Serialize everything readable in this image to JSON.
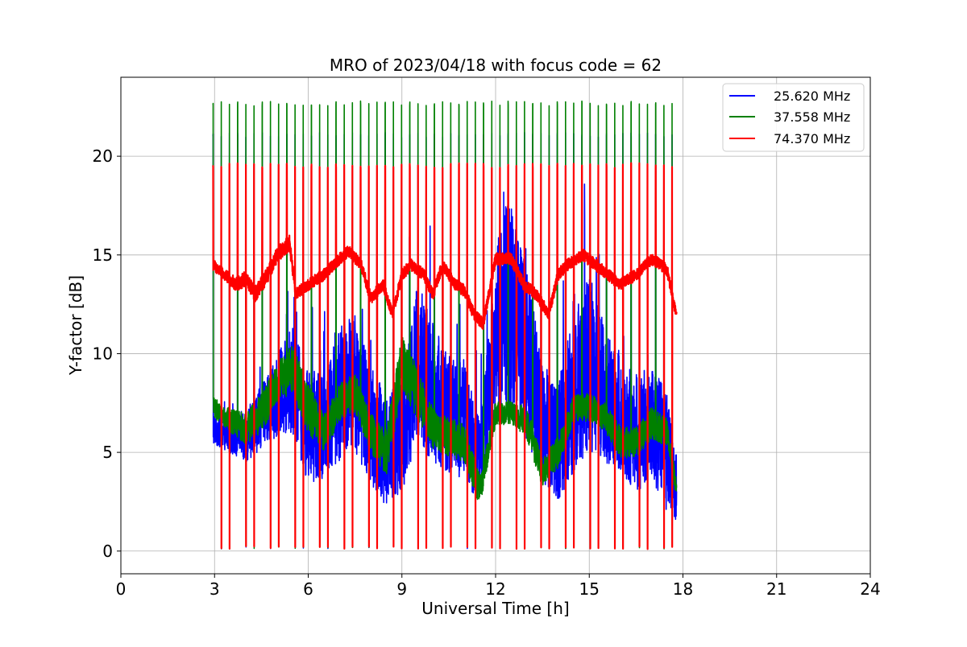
{
  "chart_data": {
    "type": "line",
    "title": "MRO of 2023/04/18 with focus code = 62",
    "xlabel": "Universal Time [h]",
    "ylabel": "Y-factor [dB]",
    "xlim": [
      0,
      24
    ],
    "ylim": [
      -1.15,
      24
    ],
    "xticks": [
      0,
      3,
      6,
      9,
      12,
      15,
      18,
      21,
      24
    ],
    "xtick_labels": [
      "0",
      "3",
      "6",
      "9",
      "12",
      "15",
      "18",
      "21",
      "24"
    ],
    "yticks": [
      0,
      5,
      10,
      15,
      20
    ],
    "ytick_labels": [
      "0",
      "5",
      "10",
      "15",
      "20"
    ],
    "grid": true,
    "legend_position": "top-right",
    "calibration": {
      "start_h": 2.95,
      "end_h": 17.8,
      "period_h": 0.2625,
      "peaks": {
        "blue": 21.2,
        "green": 22.8,
        "red": 19.65
      },
      "floor": 0.1
    },
    "series": [
      {
        "name": "25.620 MHz",
        "color": "#0000ff",
        "x": [
          2.95,
          3.5,
          4.0,
          4.5,
          5.0,
          5.5,
          6.0,
          6.5,
          7.0,
          7.5,
          8.0,
          8.5,
          9.0,
          9.5,
          10.0,
          10.5,
          11.0,
          11.5,
          12.0,
          12.5,
          13.0,
          13.5,
          14.0,
          14.5,
          15.0,
          15.5,
          16.0,
          16.5,
          17.0,
          17.5,
          17.8
        ],
        "values": [
          6.2,
          6.0,
          5.8,
          6.8,
          7.8,
          8.8,
          6.2,
          6.5,
          8.0,
          8.5,
          6.5,
          5.0,
          6.0,
          9.5,
          8.0,
          7.0,
          6.5,
          4.5,
          11.0,
          12.5,
          10.0,
          6.5,
          5.5,
          8.0,
          9.5,
          8.0,
          7.0,
          6.0,
          6.5,
          5.0,
          3.0
        ],
        "amplitude": [
          0.8,
          1.0,
          1.3,
          1.6,
          2.0,
          3.0,
          2.8,
          2.8,
          3.5,
          3.5,
          3.0,
          3.0,
          3.0,
          4.0,
          3.5,
          3.0,
          3.0,
          2.0,
          4.5,
          6.0,
          4.5,
          3.0,
          3.0,
          4.0,
          4.5,
          3.5,
          3.0,
          3.0,
          3.0,
          3.0,
          1.5
        ]
      },
      {
        "name": "37.558 MHz",
        "color": "#008000",
        "x": [
          2.95,
          3.5,
          4.0,
          4.5,
          5.0,
          5.5,
          6.0,
          6.5,
          7.0,
          7.5,
          8.0,
          8.5,
          9.0,
          9.5,
          10.0,
          10.5,
          11.0,
          11.5,
          12.0,
          12.5,
          13.0,
          13.5,
          14.0,
          14.5,
          15.0,
          15.5,
          16.0,
          16.5,
          17.0,
          17.5,
          17.8
        ],
        "values": [
          7.3,
          6.6,
          6.2,
          7.0,
          8.5,
          9.3,
          7.2,
          6.0,
          7.5,
          8.0,
          6.0,
          5.0,
          9.5,
          8.0,
          6.2,
          5.8,
          5.5,
          3.0,
          7.0,
          7.0,
          6.5,
          4.0,
          5.0,
          7.2,
          7.3,
          6.8,
          5.5,
          5.5,
          6.5,
          6.0,
          3.0
        ],
        "amplitude": [
          0.5,
          0.6,
          0.8,
          1.0,
          1.0,
          1.3,
          1.3,
          1.0,
          1.0,
          1.0,
          1.0,
          1.2,
          1.5,
          1.3,
          1.0,
          1.0,
          1.0,
          0.8,
          0.6,
          0.6,
          0.8,
          0.8,
          0.8,
          0.7,
          0.7,
          0.7,
          0.8,
          0.8,
          0.8,
          0.7,
          0.5
        ]
      },
      {
        "name": "74.370 MHz",
        "color": "#ff0000",
        "x": [
          2.95,
          3.3,
          3.7,
          4.0,
          4.3,
          4.7,
          5.0,
          5.4,
          5.6,
          6.0,
          6.5,
          7.0,
          7.3,
          7.7,
          8.0,
          8.4,
          8.7,
          9.0,
          9.3,
          9.7,
          10.0,
          10.3,
          10.7,
          11.0,
          11.3,
          11.6,
          12.0,
          12.5,
          12.9,
          13.3,
          13.7,
          14.0,
          14.3,
          14.8,
          15.2,
          15.6,
          16.0,
          16.5,
          17.0,
          17.3,
          17.5,
          17.8
        ],
        "values": [
          14.5,
          14.0,
          13.5,
          13.8,
          13.0,
          14.0,
          15.0,
          15.6,
          13.0,
          13.5,
          14.0,
          14.8,
          15.2,
          14.5,
          12.8,
          13.5,
          12.0,
          14.0,
          14.5,
          14.0,
          13.0,
          14.5,
          13.5,
          13.2,
          12.0,
          11.5,
          14.8,
          14.8,
          13.5,
          13.0,
          12.0,
          14.0,
          14.5,
          15.0,
          14.5,
          14.0,
          13.5,
          14.0,
          14.8,
          14.5,
          14.2,
          11.8
        ],
        "amplitude": [
          0.3,
          0.3,
          0.35,
          0.4,
          0.4,
          0.4,
          0.4,
          0.4,
          0.3,
          0.3,
          0.3,
          0.3,
          0.3,
          0.3,
          0.3,
          0.3,
          0.3,
          0.3,
          0.3,
          0.3,
          0.3,
          0.3,
          0.3,
          0.3,
          0.3,
          0.3,
          0.3,
          0.3,
          0.3,
          0.3,
          0.3,
          0.3,
          0.3,
          0.3,
          0.3,
          0.3,
          0.3,
          0.3,
          0.3,
          0.3,
          0.3,
          0.3
        ]
      }
    ]
  }
}
